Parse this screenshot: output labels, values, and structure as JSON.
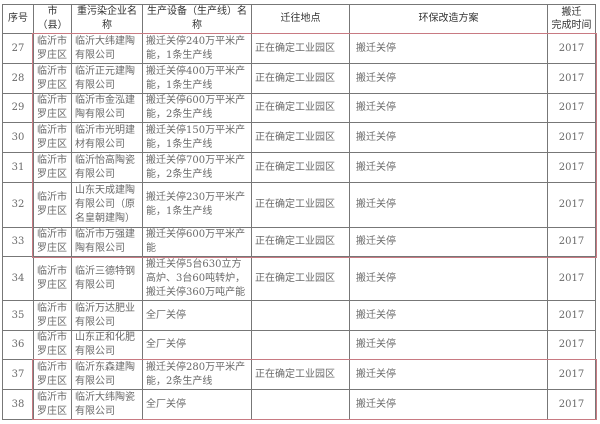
{
  "headers": [
    "序号",
    "市（县）",
    "重污染企业名称",
    "生产设备（生产线）名称",
    "迁往地点",
    "环保改造方案",
    "搬迁\n完成时间"
  ],
  "rows": [
    {
      "no": "27",
      "city": "临沂市罗庄区",
      "company": "临沂大纬建陶有限公司",
      "equipment": "搬迁关停240万平米产能，1条生产线",
      "location": "正在确定工业园区",
      "plan": "搬迁关停",
      "year": "2017"
    },
    {
      "no": "28",
      "city": "临沂市罗庄区",
      "company": "临沂正元建陶有限公司",
      "equipment": "搬迁关停400万平米产能，1条生产线",
      "location": "正在确定工业园区",
      "plan": "搬迁关停",
      "year": "2017"
    },
    {
      "no": "29",
      "city": "临沂市罗庄区",
      "company": "临沂市金泓建陶有限公司",
      "equipment": "搬迁关停600万平米产能，2条生产线",
      "location": "正在确定工业园区",
      "plan": "搬迁关停",
      "year": "2017"
    },
    {
      "no": "30",
      "city": "临沂市罗庄区",
      "company": "临沂市光明建材有限公司",
      "equipment": "搬迁关停150万平米产能，1条生产线",
      "location": "正在确定工业园区",
      "plan": "搬迁关停",
      "year": "2017"
    },
    {
      "no": "31",
      "city": "临沂市罗庄区",
      "company": "临沂怡高陶瓷有限公司",
      "equipment": "搬迁关停700万平米产能，2条生产线",
      "location": "正在确定工业园区",
      "plan": "搬迁关停",
      "year": "2017"
    },
    {
      "no": "32",
      "city": "临沂市罗庄区",
      "company": "山东天成建陶有限公司（原名皇朝建陶）",
      "equipment": "搬迁关停230万平米产能，1条生产线",
      "location": "正在确定工业园区",
      "plan": "搬迁关停",
      "year": "2017"
    },
    {
      "no": "33",
      "city": "临沂市罗庄区",
      "company": "临沂市万强建陶有限公司",
      "equipment": "搬迁关停600万平米产能",
      "location": "正在确定工业园区",
      "plan": "搬迁关停",
      "year": "2017"
    },
    {
      "no": "34",
      "city": "临沂市罗庄区",
      "company": "临沂三德特钢有限公司",
      "equipment": "搬迁关停5台630立方高炉、3台60吨转炉，搬迁关停360万吨产能",
      "location": "正在确定工业园区",
      "plan": "搬迁关停",
      "year": "2017"
    },
    {
      "no": "35",
      "city": "临沂市罗庄区",
      "company": "临沂万达肥业有限公司",
      "equipment": "全厂关停",
      "location": "",
      "plan": "搬迁关停",
      "year": "2017"
    },
    {
      "no": "36",
      "city": "临沂市罗庄区",
      "company": "山东正和化肥有限公司",
      "equipment": "全厂关停",
      "location": "",
      "plan": "搬迁关停",
      "year": "2017"
    },
    {
      "no": "37",
      "city": "临沂市罗庄区",
      "company": "临沂东森建陶有限公司",
      "equipment": "搬迁关停280万平米产能，2条生产线",
      "location": "正在确定工业园区",
      "plan": "搬迁关停",
      "year": "2017"
    },
    {
      "no": "38",
      "city": "临沂市罗庄区",
      "company": "临沂大纬陶瓷有限公司",
      "equipment": "全厂关停",
      "location": "",
      "plan": "搬迁关停",
      "year": "2017"
    }
  ],
  "highlight_color": "#c87a82"
}
